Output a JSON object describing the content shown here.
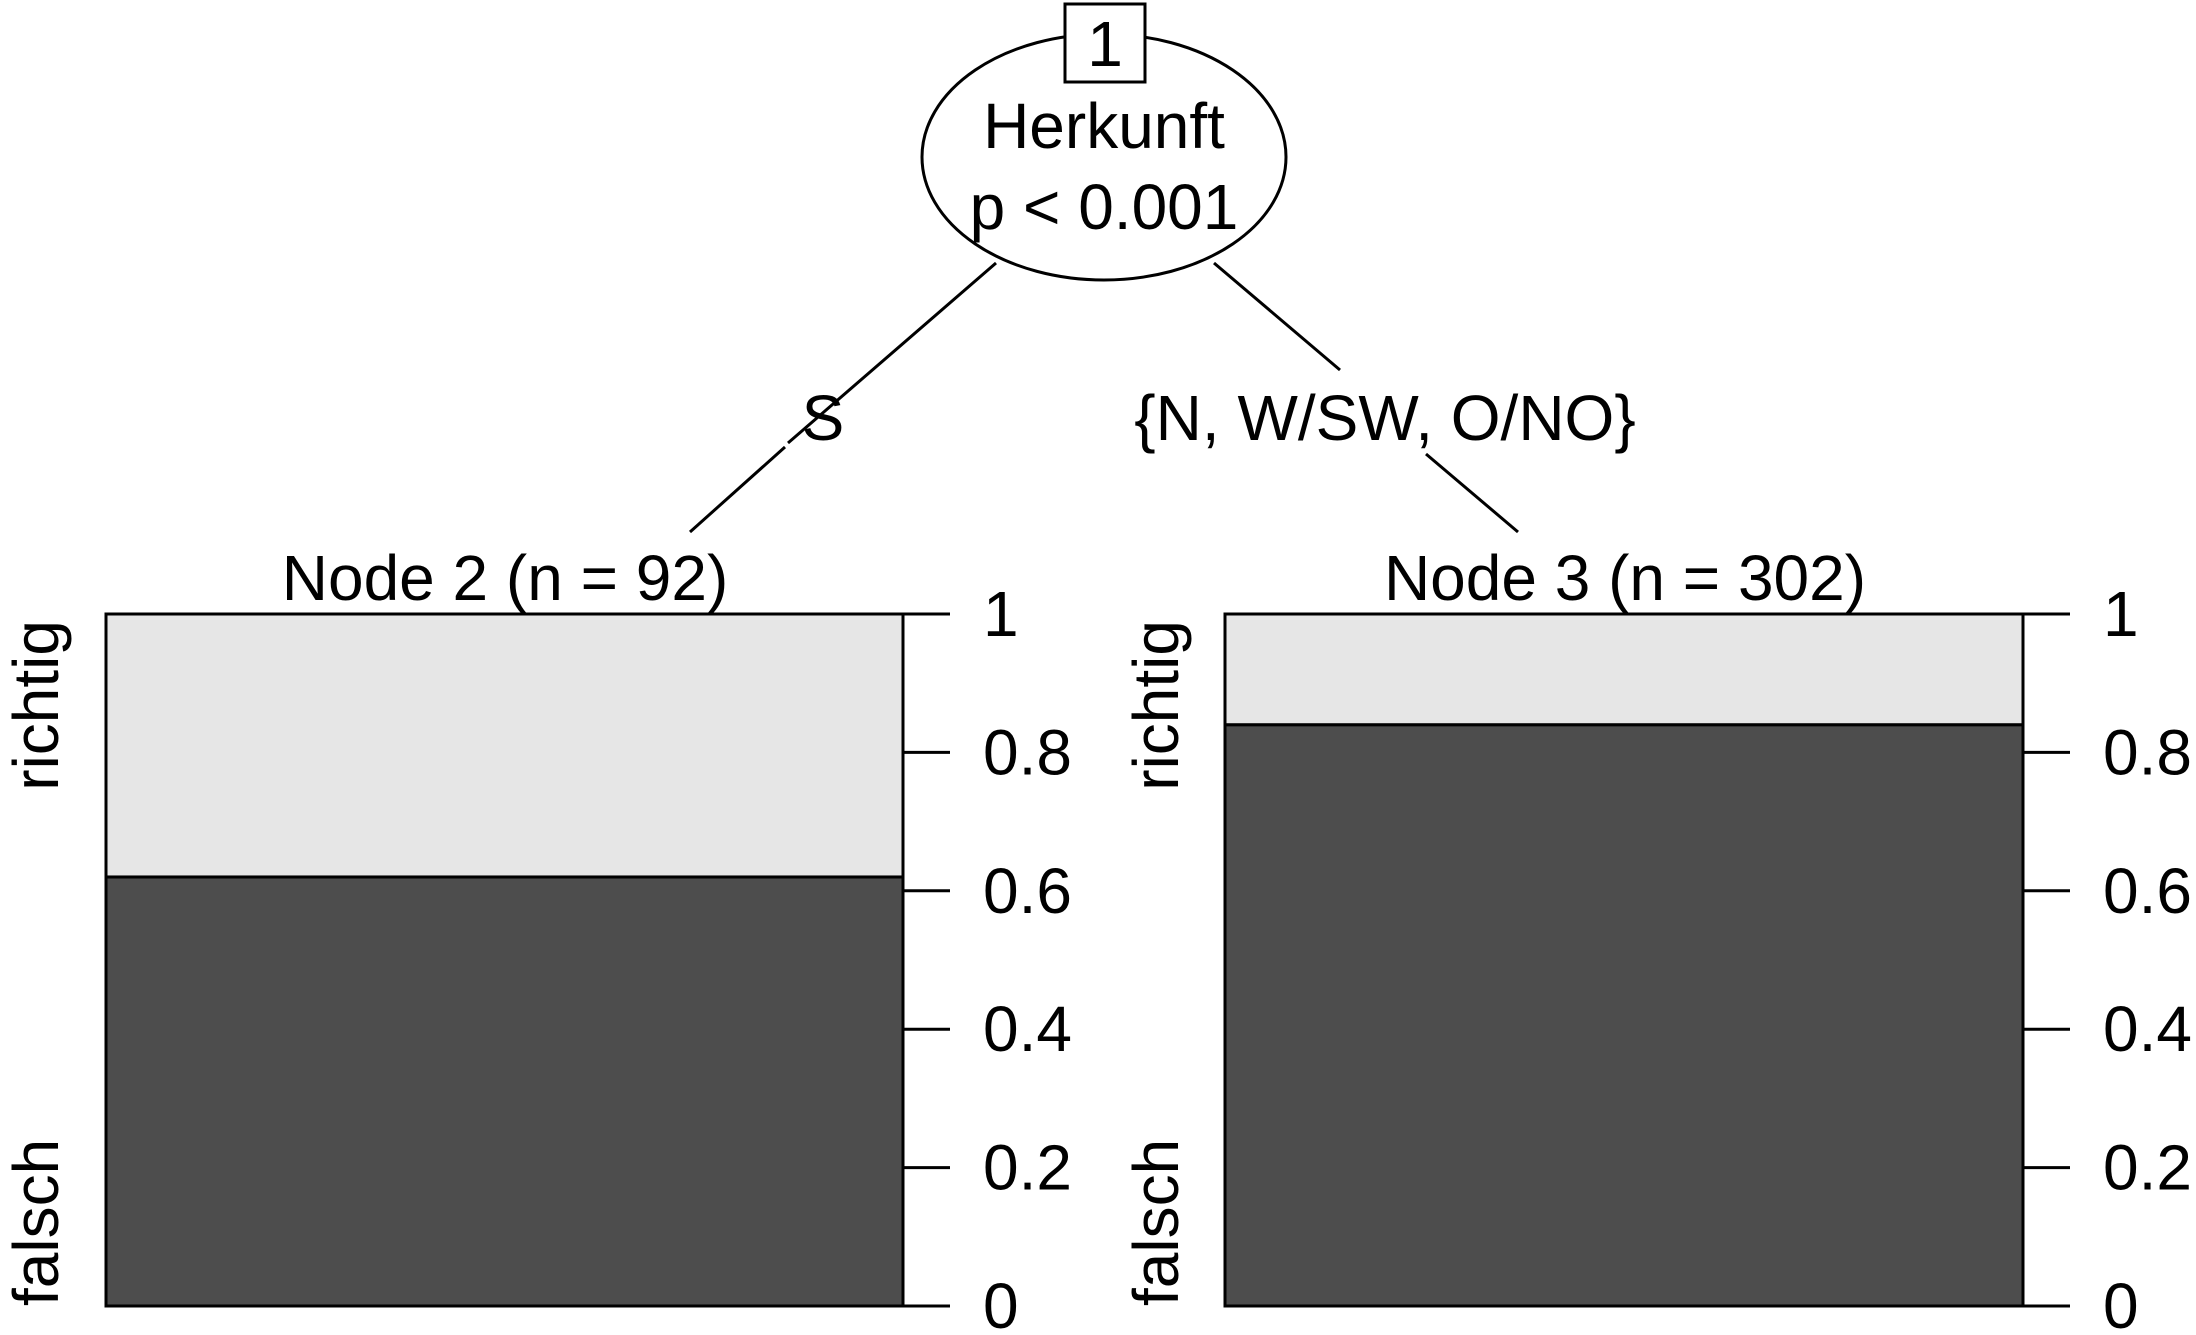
{
  "root": {
    "id": "1",
    "variable": "Herkunft",
    "p_value": "p < 0.001"
  },
  "edges": {
    "left": "S",
    "right": "{N, W/SW, O/NO}"
  },
  "y_ticks": [
    "0",
    "0.2",
    "0.4",
    "0.6",
    "0.8",
    "1"
  ],
  "categories": {
    "top": "richtig",
    "bottom": "falsch"
  },
  "colors": {
    "falsch": "#4d4d4d",
    "richtig": "#e6e6e6",
    "stroke": "#000000"
  },
  "chart_data": [
    {
      "type": "bar",
      "title": "Node 2 (n = 92)",
      "categories": [
        "falsch",
        "richtig"
      ],
      "values": [
        0.62,
        0.38
      ],
      "ylim": [
        0,
        1
      ]
    },
    {
      "type": "bar",
      "title": "Node 3 (n = 302)",
      "categories": [
        "falsch",
        "richtig"
      ],
      "values": [
        0.84,
        0.16
      ],
      "ylim": [
        0,
        1
      ]
    }
  ]
}
